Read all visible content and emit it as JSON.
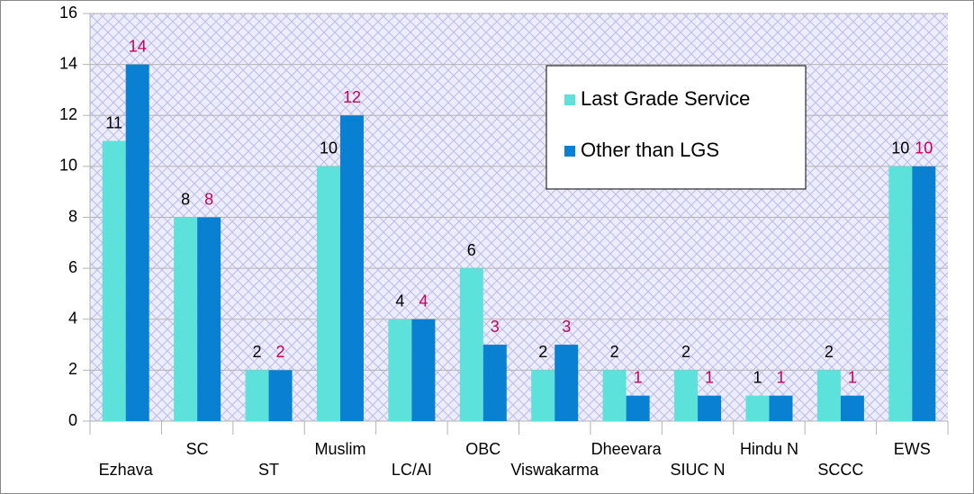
{
  "chart_data": {
    "type": "bar",
    "categories": [
      "Ezhava",
      "SC",
      "ST",
      "Muslim",
      "LC/AI",
      "OBC",
      "Viswakarma",
      "Dheevara",
      "SIUC N",
      "Hindu N",
      "SCCC",
      "EWS"
    ],
    "series": [
      {
        "name": "Last Grade Service",
        "color": "#5ce1db",
        "label_color": "#000000",
        "values": [
          11,
          8,
          2,
          10,
          4,
          6,
          2,
          2,
          2,
          1,
          2,
          10
        ]
      },
      {
        "name": "Other than LGS",
        "color": "#0a80d2",
        "label_color": "#c8005a",
        "values": [
          14,
          8,
          2,
          12,
          4,
          3,
          3,
          1,
          1,
          1,
          1,
          10
        ]
      }
    ],
    "ylim": [
      0,
      16
    ],
    "yticks": [
      0,
      2,
      4,
      6,
      8,
      10,
      12,
      14,
      16
    ],
    "grid": true,
    "legend": "upper right"
  }
}
